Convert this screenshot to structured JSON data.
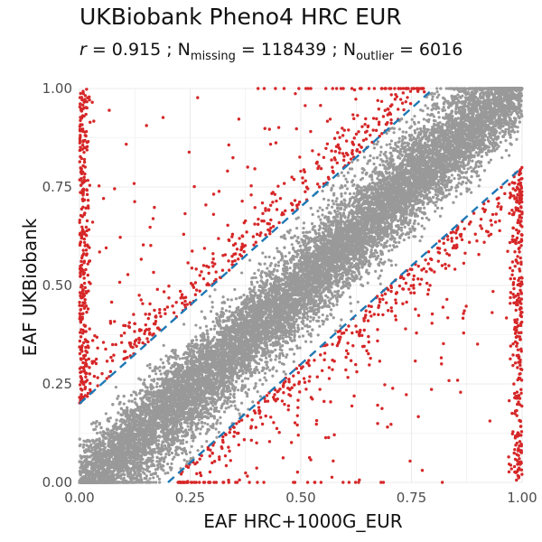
{
  "header": {
    "title": "UKBiobank Pheno4 HRC EUR",
    "r_label": "r",
    "r_value": " = 0.915 ; N",
    "missing_sub": "missing",
    "missing_value": " = 118439 ; N",
    "outlier_sub": "outlier",
    "outlier_value": " = 6016"
  },
  "chart_data": {
    "type": "scatter",
    "title": "UKBiobank Pheno4 HRC EUR",
    "subtitle": "r = 0.915 ; Nmissing = 118439 ; Noutlier = 6016",
    "xlabel": "EAF HRC+1000G_EUR",
    "ylabel": "EAF UKBiobank",
    "xlim": [
      0,
      1
    ],
    "ylim": [
      0,
      1
    ],
    "x_ticks": [
      "0.00",
      "0.25",
      "0.50",
      "0.75",
      "1.00"
    ],
    "y_ticks": [
      "0.00",
      "0.25",
      "0.50",
      "0.75",
      "1.00"
    ],
    "grid": true,
    "statistics": {
      "r": 0.915,
      "n_missing": 118439,
      "n_outlier": 6016
    },
    "reference_lines": [
      {
        "type": "dashed",
        "color": "#1f78b4",
        "intercept": 0.2,
        "slope": 1
      },
      {
        "type": "dashed",
        "color": "#1f78b4",
        "intercept": -0.2,
        "slope": 1
      }
    ],
    "series": [
      {
        "role": "inlier",
        "color": "#999999",
        "description_band": "|y - x| <= 0.2 (dense, S-shaped)"
      },
      {
        "role": "outlier",
        "color": "#d62728",
        "description_band": "|y - x| > 0.2, concentrated near x = 0 and x = 1"
      }
    ]
  }
}
